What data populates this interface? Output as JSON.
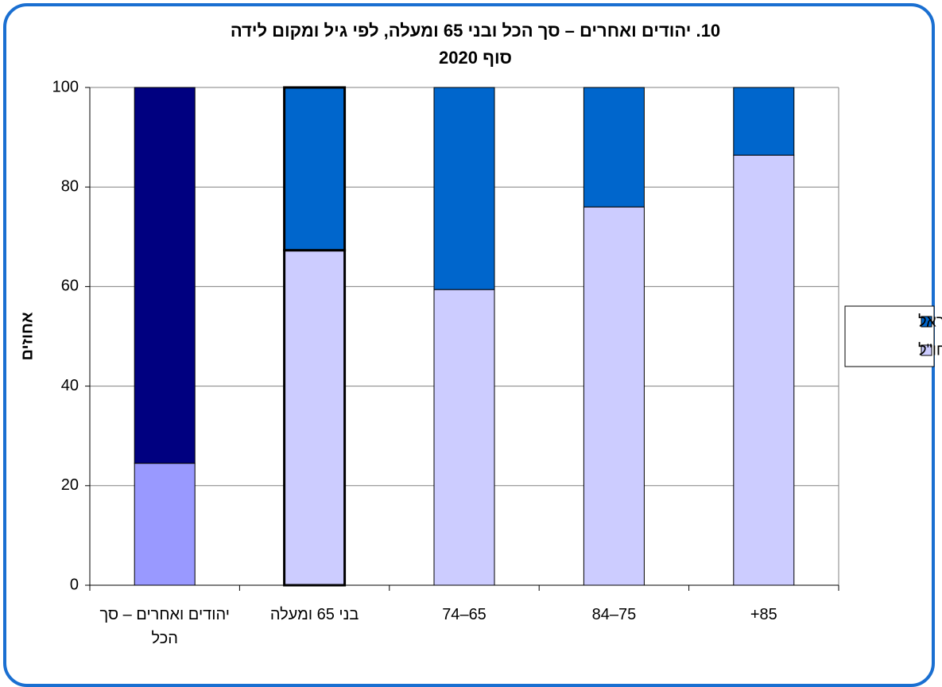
{
  "chart_data": {
    "type": "stacked_bar",
    "title": "10. יהודים ואחרים – סך הכל ובני 65 ומעלה, לפי גיל ומקום לידה",
    "subtitle": "סוף 2020",
    "y_label": "אחוזים",
    "categories": [
      "יהודים ואחרים – סך הכל",
      "בני 65 ומעלה",
      "65–74",
      "75–84",
      "85+"
    ],
    "series": [
      {
        "name": "חו\"ל",
        "color": "#ccccff",
        "colors": [
          "#9999ff",
          "#ccccff",
          "#ccccff",
          "#ccccff",
          "#ccccff"
        ],
        "values": [
          24.5,
          67.3,
          59.4,
          76,
          86.4
        ]
      },
      {
        "name": "ישראל",
        "color": "#0066cc",
        "colors": [
          "#000080",
          "#0066cc",
          "#0066cc",
          "#0066cc",
          "#0066cc"
        ],
        "values": [
          75.5,
          32.7,
          40.6,
          24,
          13.6
        ]
      }
    ],
    "bar_outline_widths": [
      1,
      3,
      1,
      1,
      1
    ],
    "ylim": [
      0,
      100
    ],
    "yticks": [
      0,
      20,
      40,
      60,
      80,
      100
    ],
    "grid": true,
    "legend": "right"
  }
}
